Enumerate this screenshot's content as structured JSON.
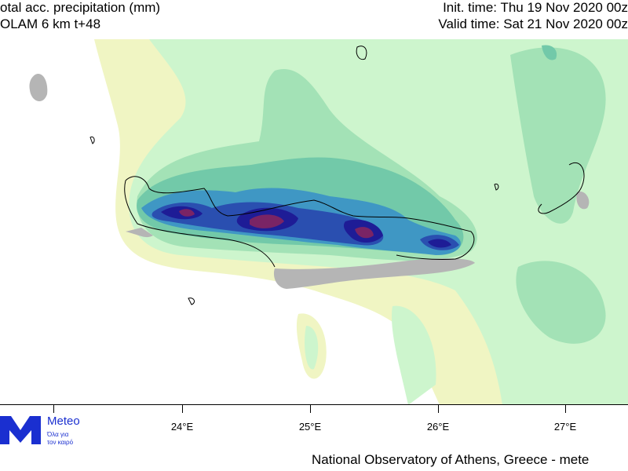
{
  "header": {
    "title": "otal acc. precipitation (mm)",
    "model": "OLAM 6 km t+48",
    "init_time": "Init. time: Thu 19 Nov 2020 00z",
    "valid_time": "Valid time: Sat 21 Nov 2020 00z"
  },
  "axis": {
    "x_labels": [
      "24°E",
      "25°E",
      "26°E",
      "27°E"
    ]
  },
  "logo": {
    "name": "Meteo",
    "tagline_1": "Όλα για",
    "tagline_2": "τον καιρό"
  },
  "footer": "National Observatory of Athens, Greece - mete",
  "colors": {
    "none": "#ffffff",
    "level1": "#f0f5c3",
    "level2": "#cdf5cd",
    "level3": "#a3e2b6",
    "level4": "#72c9a9",
    "level5": "#3f97c4",
    "level6": "#2a4fb0",
    "level7": "#1e1c96",
    "level8": "#7a2465",
    "land": "#b5b5b5"
  }
}
